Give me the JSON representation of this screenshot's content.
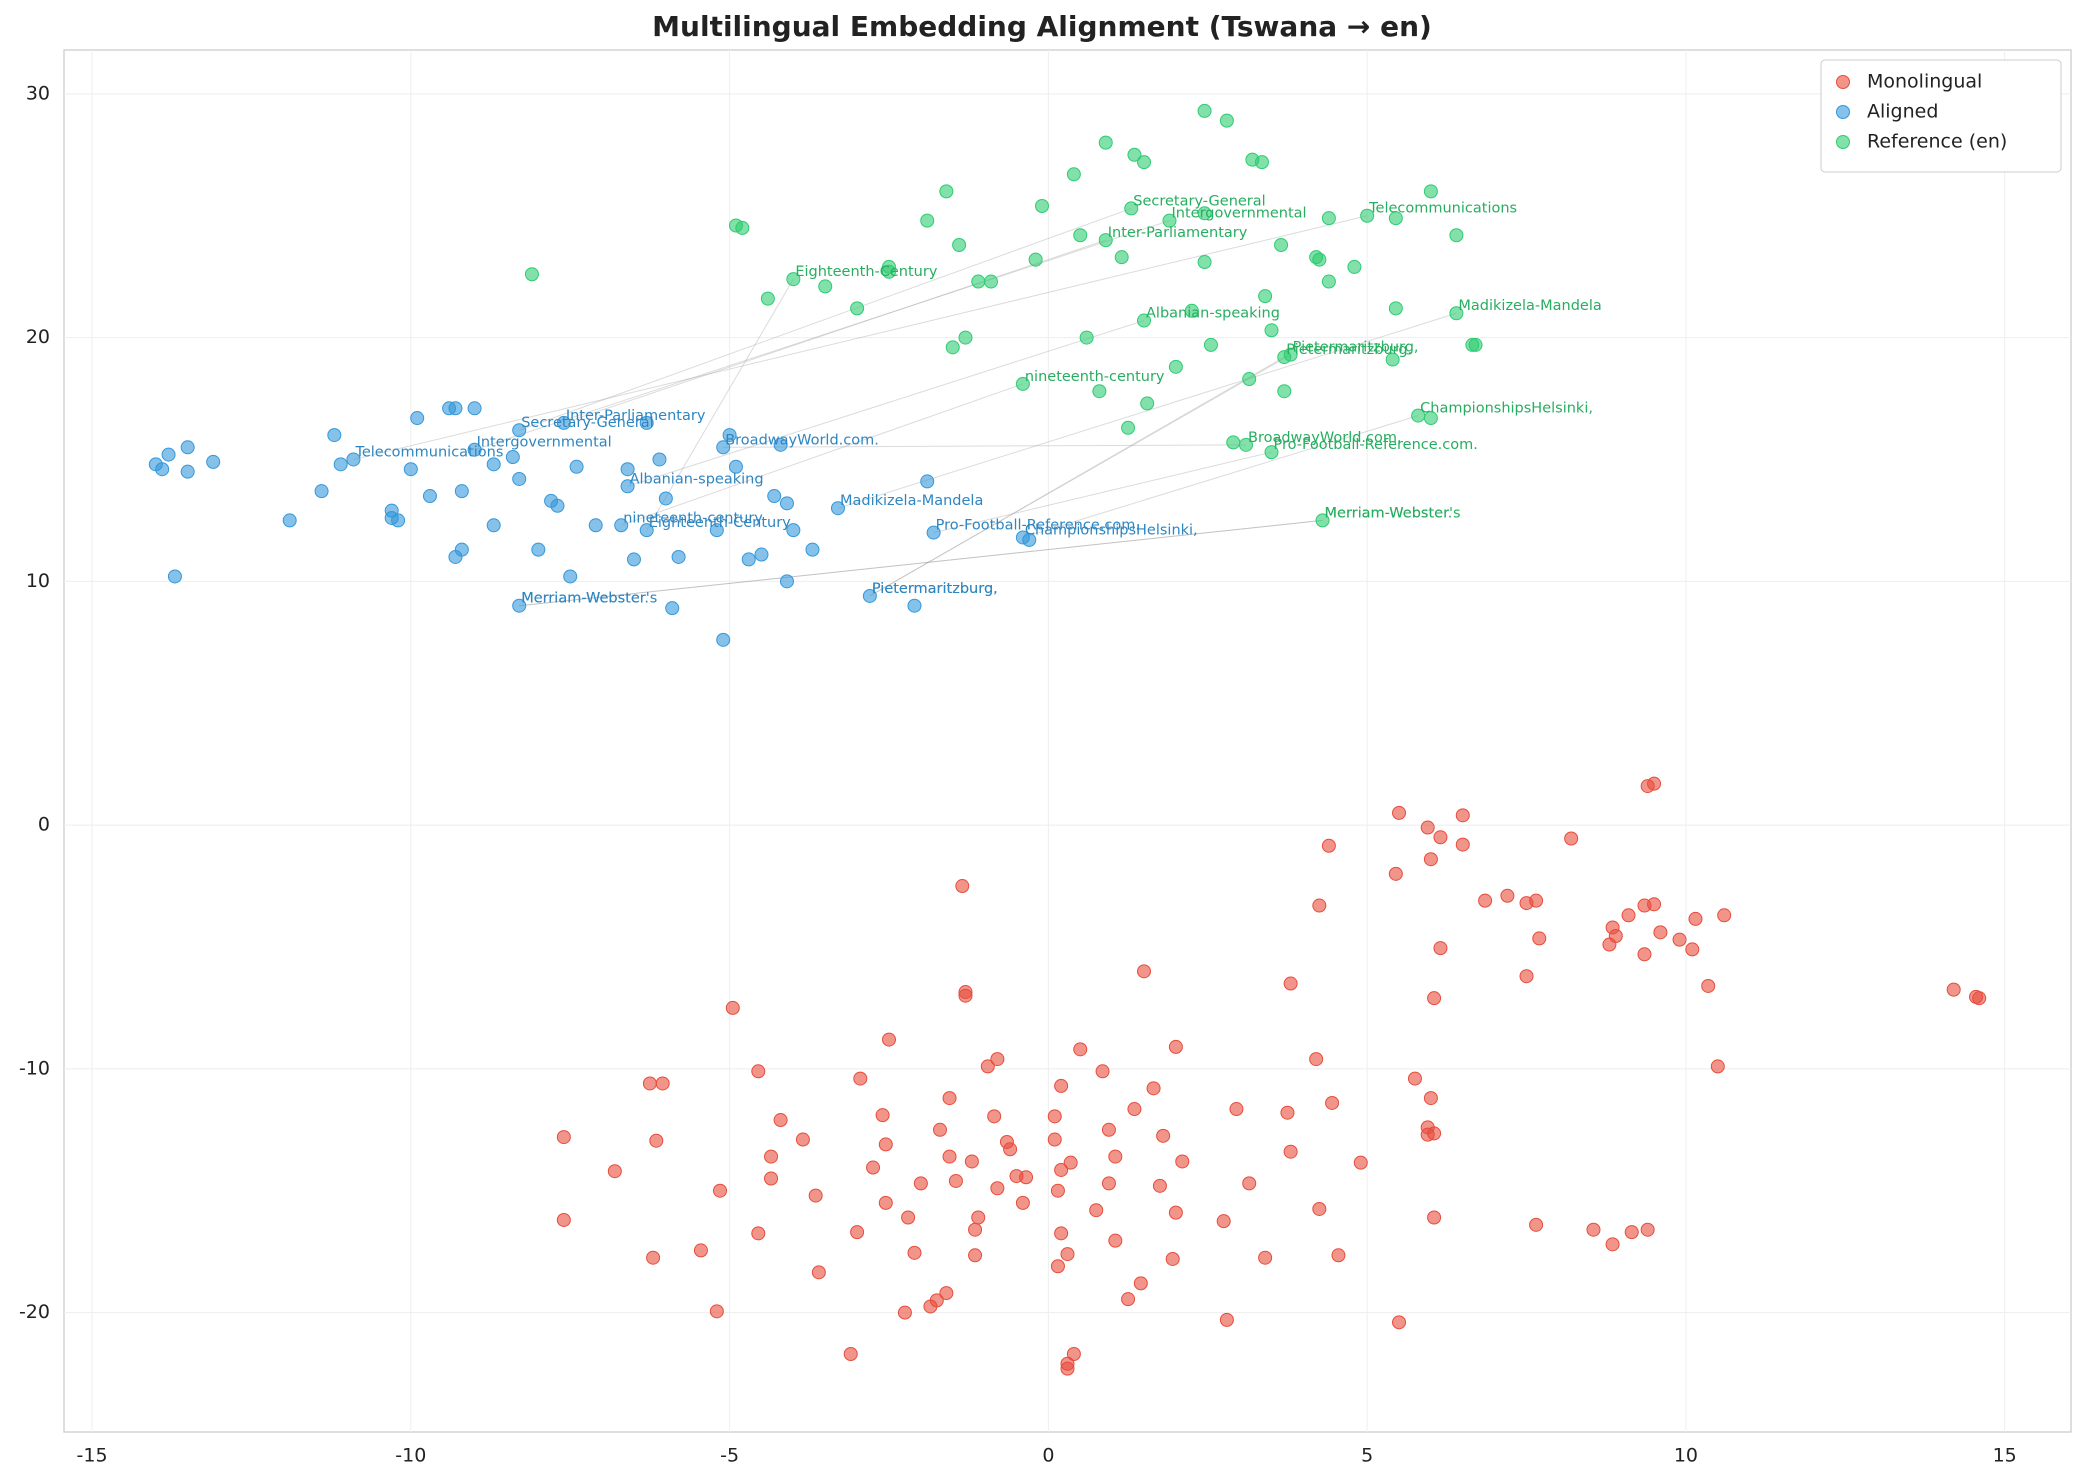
{
  "chart_data": {
    "type": "scatter",
    "title": "Multilingual Embedding Alignment (Tswana → en)",
    "xlim": [
      -15.44,
      16.04
    ],
    "ylim": [
      -24.9,
      31.8
    ],
    "xticks": [
      -15,
      -10,
      -5,
      0,
      5,
      10,
      15
    ],
    "yticks": [
      -20,
      -10,
      0,
      10,
      20,
      30
    ],
    "grid": true,
    "legend": "upper right",
    "series": [
      {
        "name": "Monolingual",
        "color": "#e74c3c",
        "x": [
          9.5,
          9.4,
          5.5,
          6.5,
          5.95,
          6.15,
          4.4,
          6.5,
          8.2,
          6.0,
          5.45,
          -1.35,
          4.25,
          6.85,
          7.2,
          7.5,
          7.65,
          9.35,
          9.5,
          9.1,
          10.15,
          10.6,
          8.85,
          9.6,
          8.9,
          7.7,
          9.9,
          6.15,
          8.8,
          10.1,
          9.35,
          1.5,
          7.5,
          3.8,
          10.35,
          -1.3,
          -1.3,
          6.05,
          14.2,
          14.55,
          14.6,
          -4.95,
          -2.5,
          0.5,
          2.0,
          -0.8,
          4.2,
          -0.95,
          10.5,
          -4.55,
          0.85,
          -2.95,
          5.75,
          -6.25,
          -6.05,
          0.2,
          1.65,
          -1.55,
          6.0,
          4.45,
          1.35,
          2.95,
          -2.6,
          -0.85,
          0.1,
          3.75,
          -4.2,
          0.95,
          -1.7,
          5.95,
          6.05,
          5.95,
          -7.6,
          1.8,
          -3.85,
          -6.15,
          -2.55,
          0.1,
          -0.65,
          -0.6,
          3.8,
          -4.35,
          -1.55,
          1.05,
          -1.2,
          0.35,
          2.1,
          4.9,
          0.2,
          -6.8,
          -2.75,
          -0.5,
          -0.35,
          -4.35,
          -1.45,
          -2.0,
          0.95,
          1.75,
          3.15,
          -0.8,
          -5.15,
          0.15,
          -3.65,
          -2.55,
          -0.4,
          0.75,
          4.25,
          -7.6,
          -2.2,
          -1.1,
          2.0,
          2.75,
          6.05,
          7.65,
          8.55,
          8.85,
          9.15,
          9.4,
          -3.0,
          -1.15,
          -4.55,
          0.2,
          1.05,
          -5.45,
          -2.1,
          -1.15,
          0.3,
          -6.2,
          3.4,
          4.55,
          1.95,
          0.15,
          -3.6,
          1.45,
          -1.6,
          -1.75,
          -1.85,
          1.25,
          -5.2,
          -2.25,
          2.8,
          5.5,
          -3.1,
          0.4,
          0.3,
          0.3
        ],
        "y": [
          1.7,
          1.6,
          0.5,
          0.4,
          -0.1,
          -0.5,
          -0.85,
          -0.8,
          -0.55,
          -1.4,
          -2.0,
          -2.5,
          -3.3,
          -3.1,
          -2.9,
          -3.2,
          -3.1,
          -3.3,
          -3.25,
          -3.7,
          -3.85,
          -3.7,
          -4.2,
          -4.4,
          -4.55,
          -4.65,
          -4.7,
          -5.05,
          -4.9,
          -5.1,
          -5.3,
          -6.0,
          -6.2,
          -6.5,
          -6.6,
          -6.85,
          -7.0,
          -7.1,
          -6.75,
          -7.05,
          -7.1,
          -7.5,
          -8.8,
          -9.2,
          -9.1,
          -9.6,
          -9.6,
          -9.9,
          -9.9,
          -10.1,
          -10.1,
          -10.4,
          -10.4,
          -10.6,
          -10.6,
          -10.7,
          -10.8,
          -11.2,
          -11.2,
          -11.4,
          -11.65,
          -11.65,
          -11.9,
          -11.95,
          -11.95,
          -11.8,
          -12.1,
          -12.5,
          -12.5,
          -12.4,
          -12.65,
          -12.7,
          -12.8,
          -12.75,
          -12.9,
          -12.95,
          -13.1,
          -12.9,
          -13.0,
          -13.3,
          -13.4,
          -13.6,
          -13.6,
          -13.6,
          -13.8,
          -13.85,
          -13.8,
          -13.85,
          -14.15,
          -14.2,
          -14.05,
          -14.4,
          -14.45,
          -14.5,
          -14.6,
          -14.7,
          -14.7,
          -14.8,
          -14.7,
          -14.9,
          -15.0,
          -15.0,
          -15.2,
          -15.5,
          -15.5,
          -15.8,
          -15.75,
          -16.2,
          -16.1,
          -16.1,
          -15.9,
          -16.25,
          -16.1,
          -16.4,
          -16.6,
          -17.2,
          -16.7,
          -16.6,
          -16.7,
          -16.6,
          -16.75,
          -16.75,
          -17.05,
          -17.45,
          -17.55,
          -17.65,
          -17.6,
          -17.75,
          -17.75,
          -17.65,
          -17.8,
          -18.1,
          -18.35,
          -18.8,
          -19.2,
          -19.5,
          -19.75,
          -19.45,
          -19.95,
          -20.0,
          -20.3,
          -20.4,
          -21.7,
          -21.7,
          -22.1,
          -22.3
        ]
      },
      {
        "name": "Aligned",
        "color": "#3498db",
        "x": [
          -14.0,
          -13.9,
          -13.8,
          -13.5,
          -13.5,
          -13.1,
          -13.7,
          -11.9,
          -11.4,
          -11.2,
          -11.1,
          -10.3,
          -10.3,
          -10.2,
          -10.0,
          -9.9,
          -9.7,
          -9.4,
          -9.3,
          -9.0,
          -9.2,
          -9.2,
          -9.3,
          -8.7,
          -8.7,
          -8.3,
          -8.4,
          -8.3,
          -8.0,
          -7.8,
          -7.7,
          -7.5,
          -7.4,
          -7.1,
          -6.7,
          -6.6,
          -6.5,
          -6.3,
          -6.1,
          -6.0,
          -5.8,
          -5.9,
          -5.2,
          -5.1,
          -5.0,
          -4.9,
          -4.7,
          -4.5,
          -4.3,
          -4.2,
          -4.1,
          -4.1,
          -4.0,
          -3.7,
          -2.8,
          -1.9,
          -2.1,
          -0.4,
          -0.3,
          -8.3,
          -7.6,
          -9.0,
          -10.9,
          -5.1,
          -6.6,
          -6.3,
          -3.3,
          -1.8
        ],
        "y": [
          14.8,
          14.6,
          15.2,
          15.5,
          14.5,
          14.9,
          10.2,
          12.5,
          13.7,
          16.0,
          14.8,
          12.9,
          12.6,
          12.5,
          14.6,
          16.7,
          13.5,
          17.1,
          17.1,
          17.1,
          13.7,
          11.3,
          11.0,
          14.8,
          12.3,
          14.2,
          15.1,
          9.0,
          11.3,
          13.3,
          13.1,
          10.2,
          14.7,
          12.3,
          12.3,
          14.6,
          10.9,
          16.5,
          15.0,
          13.4,
          11.0,
          8.9,
          12.1,
          7.6,
          16.0,
          14.7,
          10.9,
          11.1,
          13.5,
          15.6,
          13.2,
          10.0,
          12.1,
          11.3,
          9.4,
          14.1,
          9.0,
          11.8,
          11.7,
          16.2,
          16.5,
          15.4,
          15.0,
          15.5,
          13.9,
          12.1,
          13.0,
          12.0
        ]
      },
      {
        "name": "Reference (en)",
        "color": "#2ecc71",
        "x": [
          -4.4,
          -4.9,
          -4.8,
          -8.1,
          -4.0,
          -3.5,
          -3.0,
          -2.5,
          -2.5,
          -1.9,
          -1.6,
          -1.5,
          -1.4,
          -1.3,
          -1.1,
          -0.9,
          -0.4,
          -0.2,
          -0.1,
          0.4,
          0.5,
          0.6,
          0.9,
          0.8,
          1.15,
          1.25,
          1.35,
          1.5,
          1.55,
          2.0,
          2.25,
          2.45,
          2.45,
          2.45,
          2.55,
          2.8,
          2.9,
          3.2,
          3.35,
          3.15,
          3.4,
          3.5,
          3.65,
          3.7,
          4.2,
          4.25,
          4.4,
          4.4,
          4.8,
          5.45,
          5.45,
          5.4,
          6.0,
          6.0,
          6.4,
          6.65,
          6.7,
          1.3,
          0.9,
          1.9,
          5.0,
          3.1,
          1.5,
          6.4,
          3.5,
          5.8,
          4.3,
          3.7,
          3.8
        ],
        "y": [
          21.6,
          24.6,
          24.5,
          22.6,
          22.4,
          22.1,
          21.2,
          22.9,
          22.7,
          24.8,
          26.0,
          19.6,
          23.8,
          20.0,
          22.3,
          22.3,
          18.1,
          23.2,
          25.4,
          26.7,
          24.2,
          20.0,
          28.0,
          17.8,
          23.3,
          16.3,
          27.5,
          27.2,
          17.3,
          18.8,
          21.1,
          29.3,
          25.1,
          23.1,
          19.7,
          28.9,
          15.7,
          27.3,
          27.2,
          18.3,
          21.7,
          20.3,
          23.8,
          17.8,
          23.3,
          23.2,
          22.3,
          24.9,
          22.9,
          21.2,
          24.9,
          19.1,
          26.0,
          16.7,
          24.2,
          19.7,
          19.7,
          25.3,
          24.0,
          24.8,
          25.0,
          15.6,
          20.7,
          21.0,
          15.3,
          16.8,
          12.5,
          19.2,
          19.3
        ]
      }
    ],
    "annotations": [
      {
        "text": "Secretary-General",
        "aligned_x": -8.3,
        "aligned_y": 16.2,
        "reference_x": 1.3,
        "reference_y": 25.3
      },
      {
        "text": "Inter-Parliamentary",
        "aligned_x": -7.6,
        "aligned_y": 16.5,
        "reference_x": 0.9,
        "reference_y": 24.0
      },
      {
        "text": "Intergovernmental",
        "aligned_x": -9.0,
        "aligned_y": 15.4,
        "reference_x": 1.9,
        "reference_y": 24.8
      },
      {
        "text": "Telecommunications",
        "aligned_x": -10.9,
        "aligned_y": 15.0,
        "reference_x": 5.0,
        "reference_y": 25.0
      },
      {
        "text": "BroadwayWorld.com.",
        "aligned_x": -5.1,
        "aligned_y": 15.5,
        "reference_x": 3.1,
        "reference_y": 15.6
      },
      {
        "text": "Albanian-speaking",
        "aligned_x": -6.6,
        "aligned_y": 13.9,
        "reference_x": 1.5,
        "reference_y": 20.7
      },
      {
        "text": "nineteenth-century",
        "aligned_x": -6.7,
        "aligned_y": 12.3,
        "reference_x": -0.4,
        "reference_y": 18.1
      },
      {
        "text": "Eighteenth-Century",
        "aligned_x": -6.3,
        "aligned_y": 12.1,
        "reference_x": -4.0,
        "reference_y": 22.4
      },
      {
        "text": "Madikizela-Mandela",
        "aligned_x": -3.3,
        "aligned_y": 13.0,
        "reference_x": 6.4,
        "reference_y": 21.0
      },
      {
        "text": "Pro-Football-Reference.com.",
        "aligned_x": -1.8,
        "aligned_y": 12.0,
        "reference_x": 3.5,
        "reference_y": 15.3
      },
      {
        "text": "ChampionshipsHelsinki,",
        "aligned_x": -0.4,
        "aligned_y": 11.8,
        "reference_x": 5.8,
        "reference_y": 16.8
      },
      {
        "text": "Merriam-Webster's",
        "aligned_x": -8.3,
        "aligned_y": 9.0,
        "reference_x": 4.3,
        "reference_y": 12.5
      },
      {
        "text": "Merriam-Webster.",
        "aligned_x": -8.3,
        "aligned_y": 9.0,
        "reference_x": 4.3,
        "reference_y": 12.5
      },
      {
        "text": "Pietermaritzburg.",
        "aligned_x": -2.8,
        "aligned_y": 9.4,
        "reference_x": 3.7,
        "reference_y": 19.2
      },
      {
        "text": "Pietermaritzburg,",
        "aligned_x": -2.8,
        "aligned_y": 9.4,
        "reference_x": 3.8,
        "reference_y": 19.3
      }
    ]
  }
}
